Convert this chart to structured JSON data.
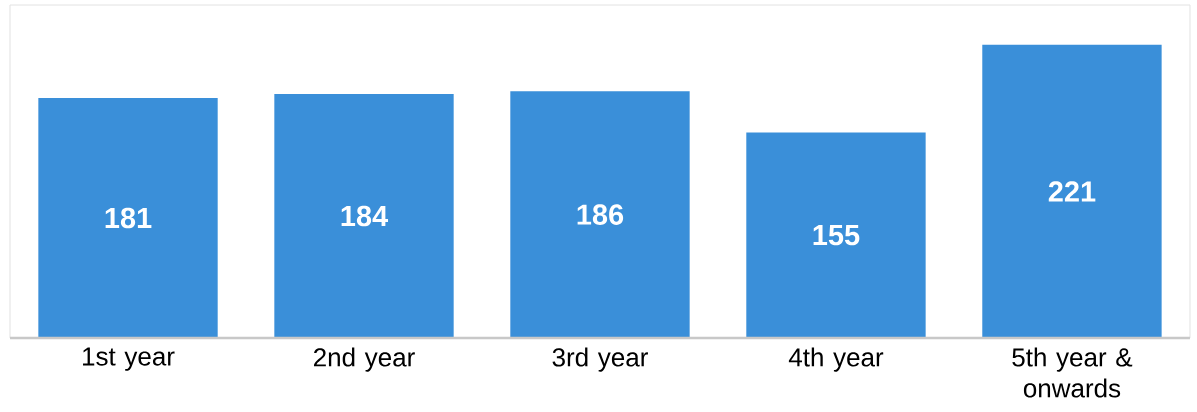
{
  "chart_data": {
    "type": "bar",
    "categories": [
      "1st year",
      "2nd year",
      "3rd year",
      "4th year",
      "5th year & onwards"
    ],
    "values": [
      181,
      184,
      186,
      155,
      221
    ],
    "color": "#3a8fd9",
    "data_labels": true,
    "tick_labels": "x"
  }
}
